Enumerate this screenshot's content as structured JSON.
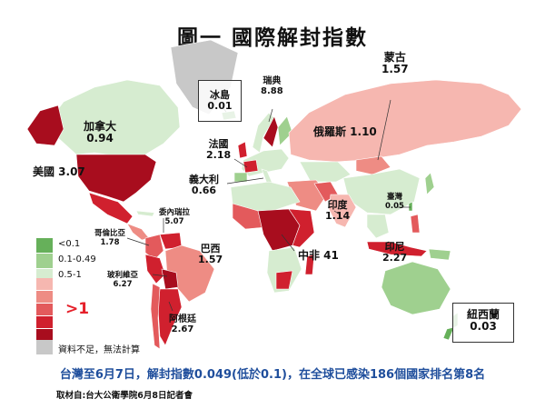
{
  "title": "圖一  國際解封指數",
  "colors": {
    "lt01": "#66b05a",
    "r01_049": "#9fd08f",
    "r05_1": "#d6ecd0",
    "gt1_a": "#f6b7b0",
    "gt1_b": "#ee8c84",
    "gt1_c": "#e35a5c",
    "gt1_d": "#d0202e",
    "gt1_e": "#a80d1e",
    "na": "#c8c8c8"
  },
  "legend": {
    "items": [
      {
        "label": "<0.1",
        "color": "#66b05a"
      },
      {
        "label": "0.1-0.49",
        "color": "#9fd08f"
      },
      {
        "label": "0.5-1",
        "color": "#d6ecd0"
      }
    ],
    "gt1_colors": [
      "#f6b7b0",
      "#ee8c84",
      "#e35a5c",
      "#d0202e",
      "#a80d1e"
    ],
    "gt1_label": ">1",
    "na_label": "資料不足，無法計算",
    "na_color": "#c8c8c8"
  },
  "labels": {
    "canada": {
      "name": "加拿大",
      "value": "0.94"
    },
    "usa": "美國 3.07",
    "iceland": {
      "name": "冰島",
      "value": "0.01"
    },
    "sweden": {
      "name": "瑞典",
      "value": "8.88"
    },
    "mongolia": {
      "name": "蒙古",
      "value": "1.57"
    },
    "russia": "俄羅斯 1.10",
    "france": {
      "name": "法國",
      "value": "2.18"
    },
    "italy": {
      "name": "義大利",
      "value": "0.66"
    },
    "venezuela": {
      "name": "委內瑞拉",
      "value": "5.07"
    },
    "colombia": {
      "name": "哥倫比亞",
      "value": "1.78"
    },
    "brazil": {
      "name": "巴西",
      "value": "1.57"
    },
    "bolivia": {
      "name": "玻利維亞",
      "value": "6.27"
    },
    "argentina": {
      "name": "阿根廷",
      "value": "2.67"
    },
    "india": {
      "name": "印度",
      "value": "1.14"
    },
    "taiwan": {
      "name": "臺灣",
      "value": "0.05"
    },
    "car": "中非 41",
    "indonesia": {
      "name": "印尼",
      "value": "2.27"
    },
    "new_zealand": {
      "name": "紐西蘭",
      "value": "0.03"
    }
  },
  "bottom_text": "台灣至6月7日，解封指數0.049(低於0.1)，在全球已感染186個國家排名第8名",
  "source": "取材自:台大公衛學院6月8日記者會"
}
